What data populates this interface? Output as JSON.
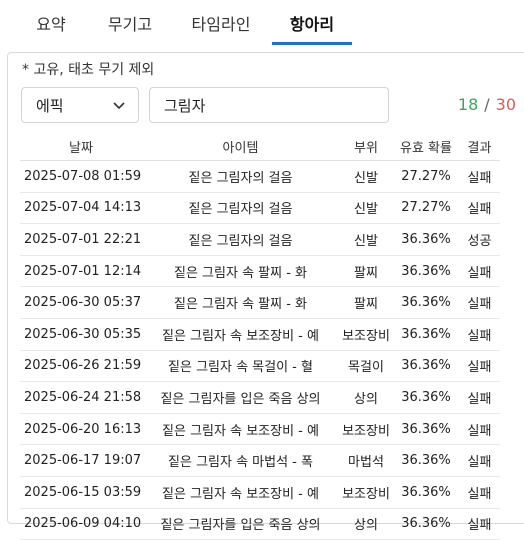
{
  "tabs": [
    {
      "label": "요약"
    },
    {
      "label": "무기고"
    },
    {
      "label": "타임라인"
    },
    {
      "label": "항아리"
    }
  ],
  "note": "* 고유, 태초 무기 제외",
  "filter": {
    "rarity": "에픽",
    "search_value": "그림자"
  },
  "counts": {
    "success": "18",
    "separator": "/",
    "fail": "30"
  },
  "colors": {
    "accent": "#1f6fd6",
    "slot": "#e0a100",
    "success": "#3aa757",
    "fail": "#e05a4f"
  },
  "table": {
    "headers": [
      "날짜",
      "아이템",
      "부위",
      "유효 확률",
      "결과"
    ],
    "rows": [
      {
        "date": "2025-07-08 01:59",
        "item": "짙은 그림자의 걸음",
        "slot": "신발",
        "prob": "27.27%",
        "result": "실패",
        "status": "fail"
      },
      {
        "date": "2025-07-04 14:13",
        "item": "짙은 그림자의 걸음",
        "slot": "신발",
        "prob": "27.27%",
        "result": "실패",
        "status": "fail"
      },
      {
        "date": "2025-07-01 22:21",
        "item": "짙은 그림자의 걸음",
        "slot": "신발",
        "prob": "36.36%",
        "result": "성공",
        "status": "ok"
      },
      {
        "date": "2025-07-01 12:14",
        "item": "짙은 그림자 속 팔찌 - 화",
        "slot": "팔찌",
        "prob": "36.36%",
        "result": "실패",
        "status": "fail"
      },
      {
        "date": "2025-06-30 05:37",
        "item": "짙은 그림자 속 팔찌 - 화",
        "slot": "팔찌",
        "prob": "36.36%",
        "result": "실패",
        "status": "fail"
      },
      {
        "date": "2025-06-30 05:35",
        "item": "짙은 그림자 속 보조장비 - 예",
        "slot": "보조장비",
        "prob": "36.36%",
        "result": "실패",
        "status": "fail"
      },
      {
        "date": "2025-06-26 21:59",
        "item": "짙은 그림자 속 목걸이 - 혈",
        "slot": "목걸이",
        "prob": "36.36%",
        "result": "실패",
        "status": "fail"
      },
      {
        "date": "2025-06-24 21:58",
        "item": "짙은 그림자를 입은 죽음 상의",
        "slot": "상의",
        "prob": "36.36%",
        "result": "실패",
        "status": "fail"
      },
      {
        "date": "2025-06-20 16:13",
        "item": "짙은 그림자 속 보조장비 - 예",
        "slot": "보조장비",
        "prob": "36.36%",
        "result": "실패",
        "status": "fail"
      },
      {
        "date": "2025-06-17 19:07",
        "item": "짙은 그림자 속 마법석 - 폭",
        "slot": "마법석",
        "prob": "36.36%",
        "result": "실패",
        "status": "fail"
      },
      {
        "date": "2025-06-15 03:59",
        "item": "짙은 그림자 속 보조장비 - 예",
        "slot": "보조장비",
        "prob": "36.36%",
        "result": "실패",
        "status": "fail"
      },
      {
        "date": "2025-06-09 04:10",
        "item": "짙은 그림자를 입은 죽음 상의",
        "slot": "상의",
        "prob": "36.36%",
        "result": "실패",
        "status": "fail"
      }
    ]
  }
}
